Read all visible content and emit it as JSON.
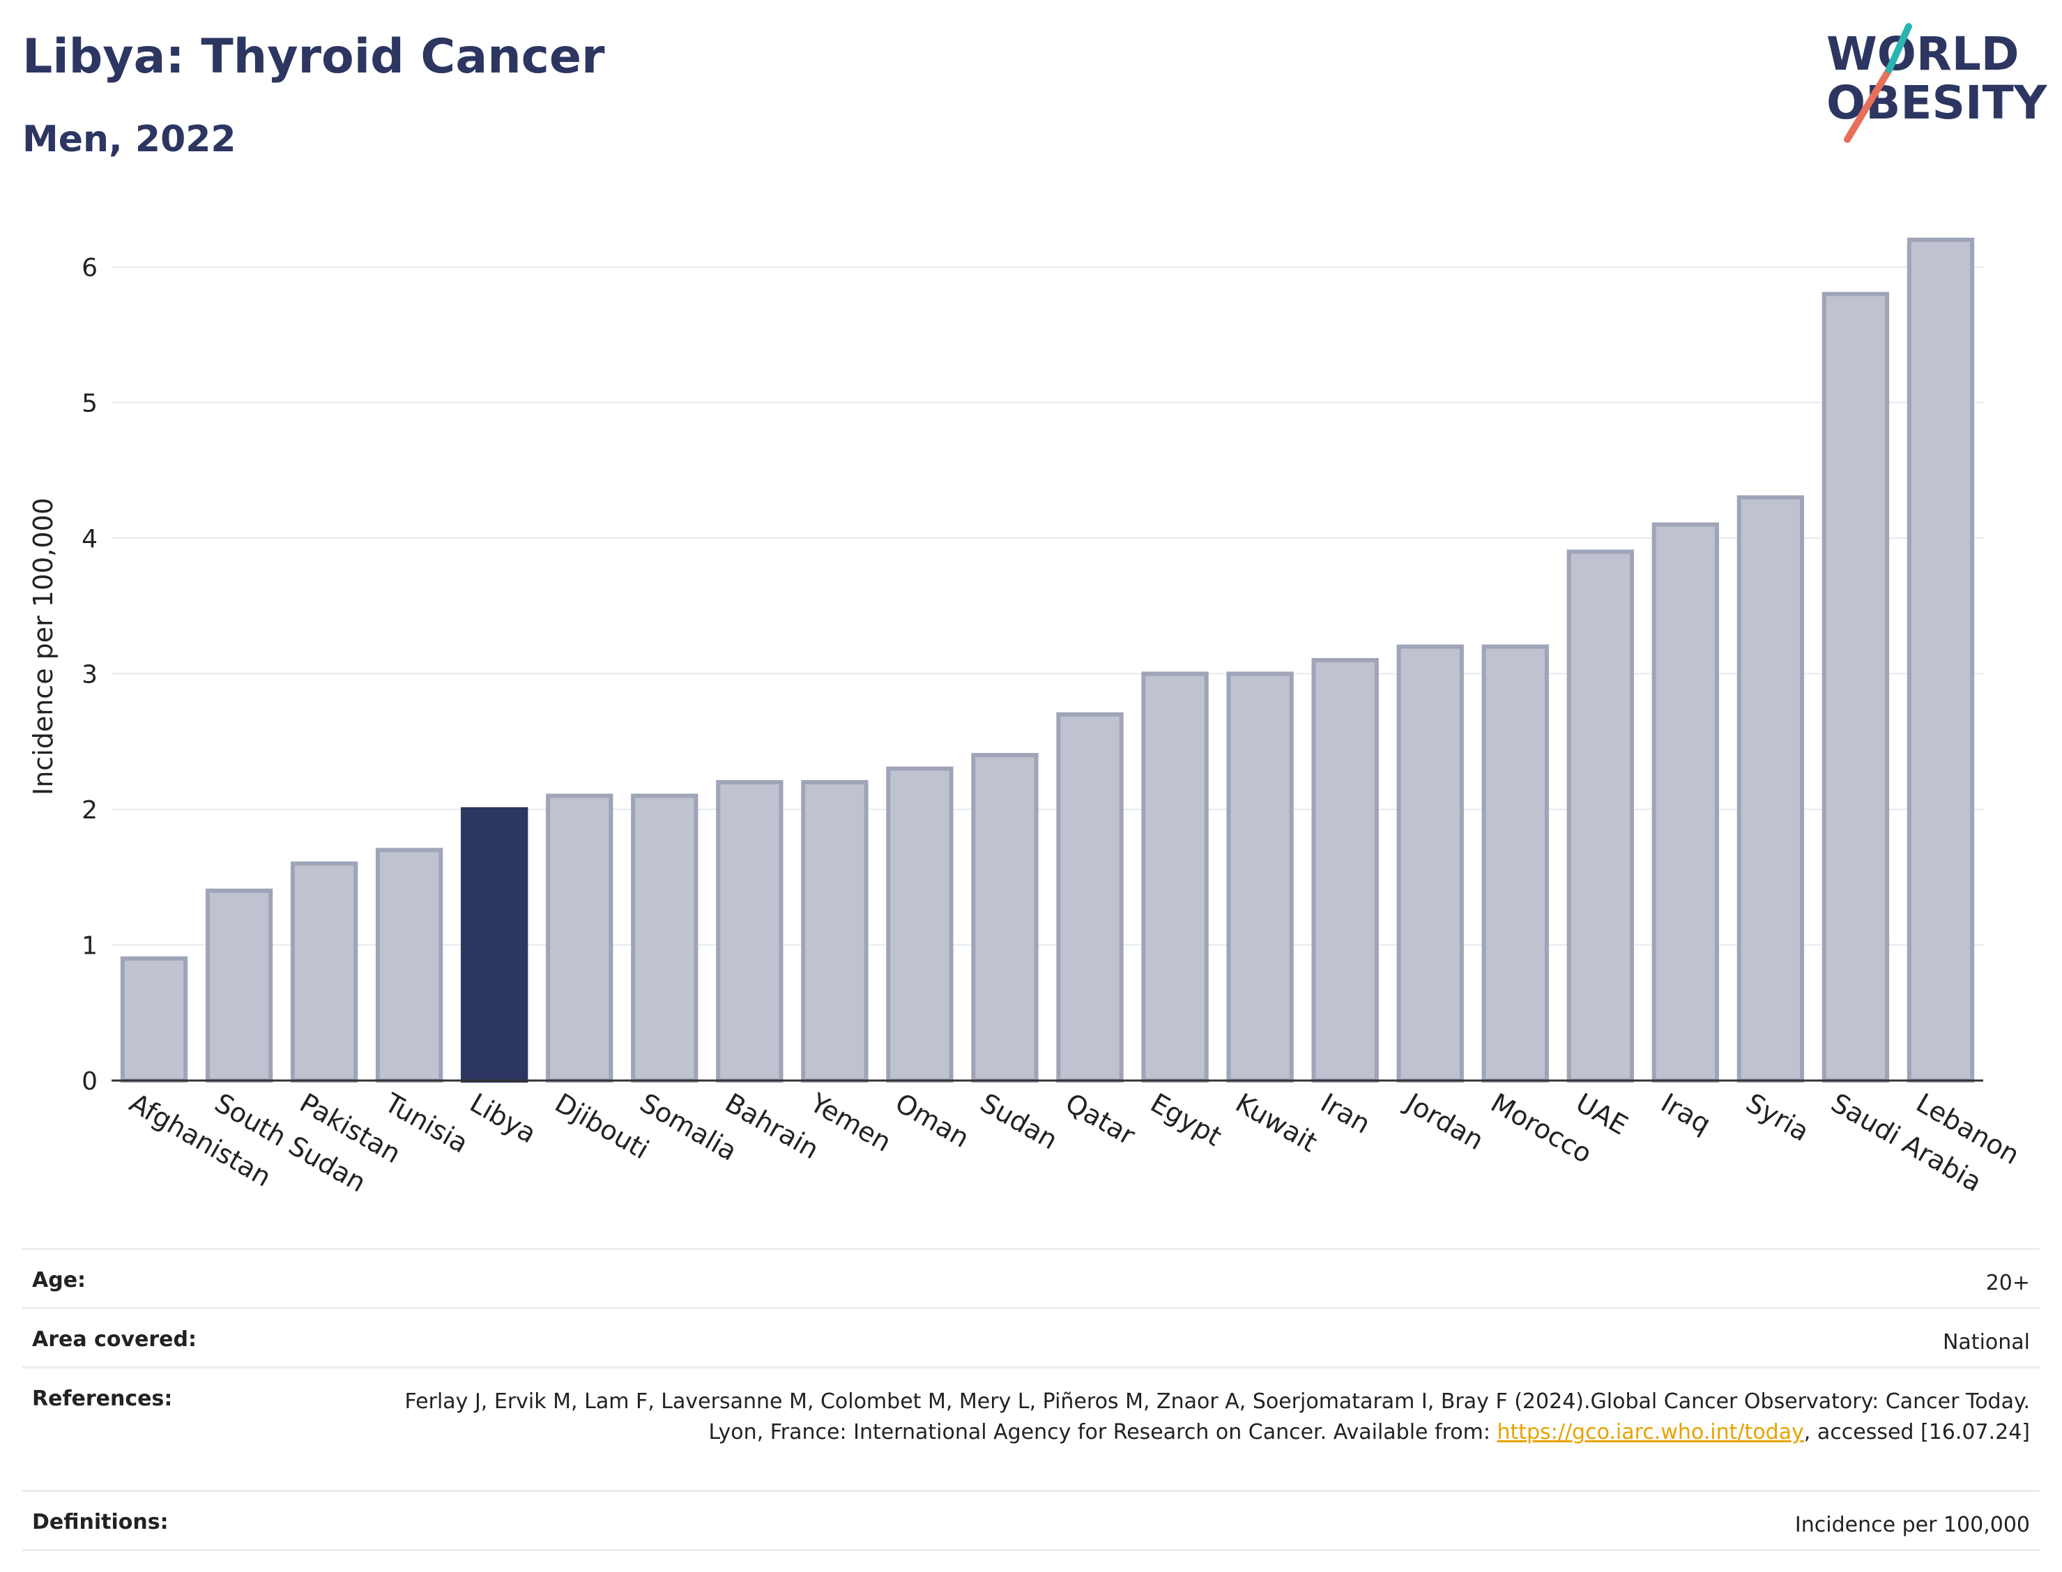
{
  "header": {
    "title": "Libya: Thyroid Cancer",
    "subtitle": "Men, 2022"
  },
  "logo": {
    "line1": "WORLD",
    "line2": "OBESITY"
  },
  "colors": {
    "highlight": "#2d3561",
    "bar_fill": "#bfc2cf",
    "bar_stroke": "#9fa4b8",
    "grid": "#e6e9ef",
    "title": "#2d3561",
    "logo_teal": "#2ab5b2",
    "logo_coral": "#e8705a"
  },
  "chart_data": {
    "type": "bar",
    "categories": [
      "Afghanistan",
      "South Sudan",
      "Pakistan",
      "Tunisia",
      "Libya",
      "Djibouti",
      "Somalia",
      "Bahrain",
      "Yemen",
      "Oman",
      "Sudan",
      "Qatar",
      "Egypt",
      "Kuwait",
      "Iran",
      "Jordan",
      "Morocco",
      "UAE",
      "Iraq",
      "Syria",
      "Saudi Arabia",
      "Lebanon"
    ],
    "values": [
      0.9,
      1.4,
      1.6,
      1.7,
      2.0,
      2.1,
      2.1,
      2.2,
      2.2,
      2.3,
      2.4,
      2.7,
      3.0,
      3.0,
      3.1,
      3.2,
      3.2,
      3.9,
      4.1,
      4.3,
      5.8,
      6.2
    ],
    "highlight": "Libya",
    "ylabel": "Incidence per 100,000",
    "xlabel": "",
    "ylim": [
      0,
      6.4
    ],
    "yticks": [
      0,
      1,
      2,
      3,
      4,
      5,
      6
    ],
    "grid": true
  },
  "info": {
    "age": {
      "label": "Age:",
      "value": "20+"
    },
    "area": {
      "label": "Area covered:",
      "value": "National"
    },
    "references": {
      "label": "References:",
      "text1": "Ferlay J, Ervik M, Lam F, Laversanne M, Colombet M, Mery L, Piñeros M, Znaor A, Soerjomataram I, Bray F (2024).Global Cancer Observatory: Cancer Today. Lyon, France: International Agency for Research on Cancer. Available from: ",
      "link": "https://gco.iarc.who.int/today",
      "text2": ", accessed [16.07.24]"
    },
    "definitions": {
      "label": "Definitions:",
      "value": "Incidence per 100,000"
    }
  }
}
